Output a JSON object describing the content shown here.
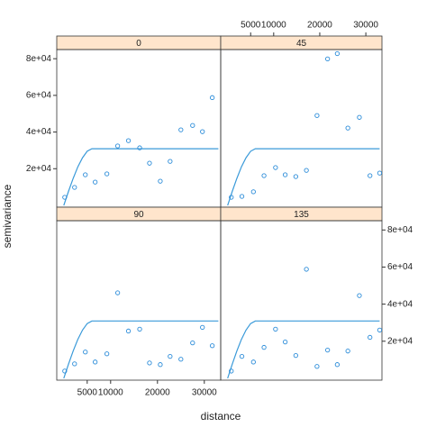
{
  "xlabel": "distance",
  "ylabel": "semivariance",
  "chart_data": [
    {
      "type": "scatter",
      "title": "0",
      "color": "#2b8cd9",
      "line_color": "#3a9ad9",
      "x": [
        200,
        2300,
        4600,
        6700,
        9200,
        11500,
        13800,
        16200,
        18300,
        20600,
        22700,
        25000,
        27500,
        29600,
        31700
      ],
      "values": [
        4400,
        9800,
        16700,
        12700,
        17200,
        32400,
        35300,
        31400,
        23000,
        13200,
        24000,
        41200,
        43600,
        40200,
        58800
      ],
      "model_x": [
        0,
        1000,
        2000,
        3000,
        4000,
        5000,
        6000,
        33000
      ],
      "model_values": [
        0,
        7600,
        14700,
        21000,
        26000,
        29500,
        30900,
        30900
      ],
      "xlim": [
        -1500,
        33500
      ],
      "ylim": [
        -1000,
        85000
      ],
      "yticks": [
        {
          "value": 20000,
          "label": "2e+04"
        },
        {
          "value": 40000,
          "label": "4e+04"
        },
        {
          "value": 60000,
          "label": "6e+04"
        },
        {
          "value": 80000,
          "label": "8e+04"
        }
      ]
    },
    {
      "type": "scatter",
      "title": "45",
      "color": "#2b8cd9",
      "line_color": "#3a9ad9",
      "x": [
        800,
        3100,
        5600,
        7900,
        10400,
        12500,
        14800,
        17100,
        19400,
        21700,
        23800,
        26100,
        28600,
        30900,
        33000
      ],
      "values": [
        4400,
        4900,
        7400,
        16200,
        20600,
        16700,
        15700,
        19100,
        49000,
        79900,
        82800,
        42200,
        48000,
        16200,
        17600
      ],
      "model_x": [
        0,
        1000,
        2000,
        3000,
        4000,
        5000,
        6000,
        33000
      ],
      "model_values": [
        0,
        7600,
        14700,
        21000,
        26000,
        29500,
        30900,
        30900
      ],
      "xlim": [
        -1500,
        33500
      ],
      "ylim": [
        -1000,
        85000
      ],
      "xticks": [
        5000,
        10000,
        20000,
        30000
      ]
    },
    {
      "type": "scatter",
      "title": "90",
      "color": "#2b8cd9",
      "line_color": "#3a9ad9",
      "x": [
        200,
        2300,
        4600,
        6700,
        9200,
        11500,
        13800,
        16200,
        18300,
        20600,
        22700,
        25000,
        27500,
        29600,
        31700
      ],
      "values": [
        3900,
        7800,
        14200,
        8800,
        13200,
        46100,
        25500,
        26500,
        8300,
        7400,
        11800,
        10300,
        19100,
        27500,
        17600
      ],
      "model_x": [
        0,
        1000,
        2000,
        3000,
        4000,
        5000,
        6000,
        33000
      ],
      "model_values": [
        0,
        7600,
        14700,
        21000,
        26000,
        29500,
        30900,
        30900
      ],
      "xlim": [
        -1500,
        33500
      ],
      "ylim": [
        -1000,
        85000
      ],
      "xticks": [
        5000,
        10000,
        20000,
        30000
      ]
    },
    {
      "type": "scatter",
      "title": "135",
      "color": "#2b8cd9",
      "line_color": "#3a9ad9",
      "x": [
        800,
        3100,
        5600,
        7900,
        10400,
        12500,
        14800,
        17100,
        19400,
        21700,
        23800,
        26100,
        28600,
        30900,
        33000
      ],
      "values": [
        3900,
        11800,
        8800,
        16700,
        26500,
        19600,
        12300,
        58800,
        6400,
        15200,
        7400,
        14700,
        44600,
        22100,
        26000
      ],
      "model_x": [
        0,
        1000,
        2000,
        3000,
        4000,
        5000,
        6000,
        33000
      ],
      "model_values": [
        0,
        7600,
        14700,
        21000,
        26000,
        29500,
        30900,
        30900
      ],
      "xlim": [
        -1500,
        33500
      ],
      "ylim": [
        -1000,
        85000
      ],
      "yticks": [
        {
          "value": 20000,
          "label": "2e+04"
        },
        {
          "value": 40000,
          "label": "4e+04"
        },
        {
          "value": 60000,
          "label": "6e+04"
        },
        {
          "value": 80000,
          "label": "8e+04"
        }
      ]
    }
  ]
}
